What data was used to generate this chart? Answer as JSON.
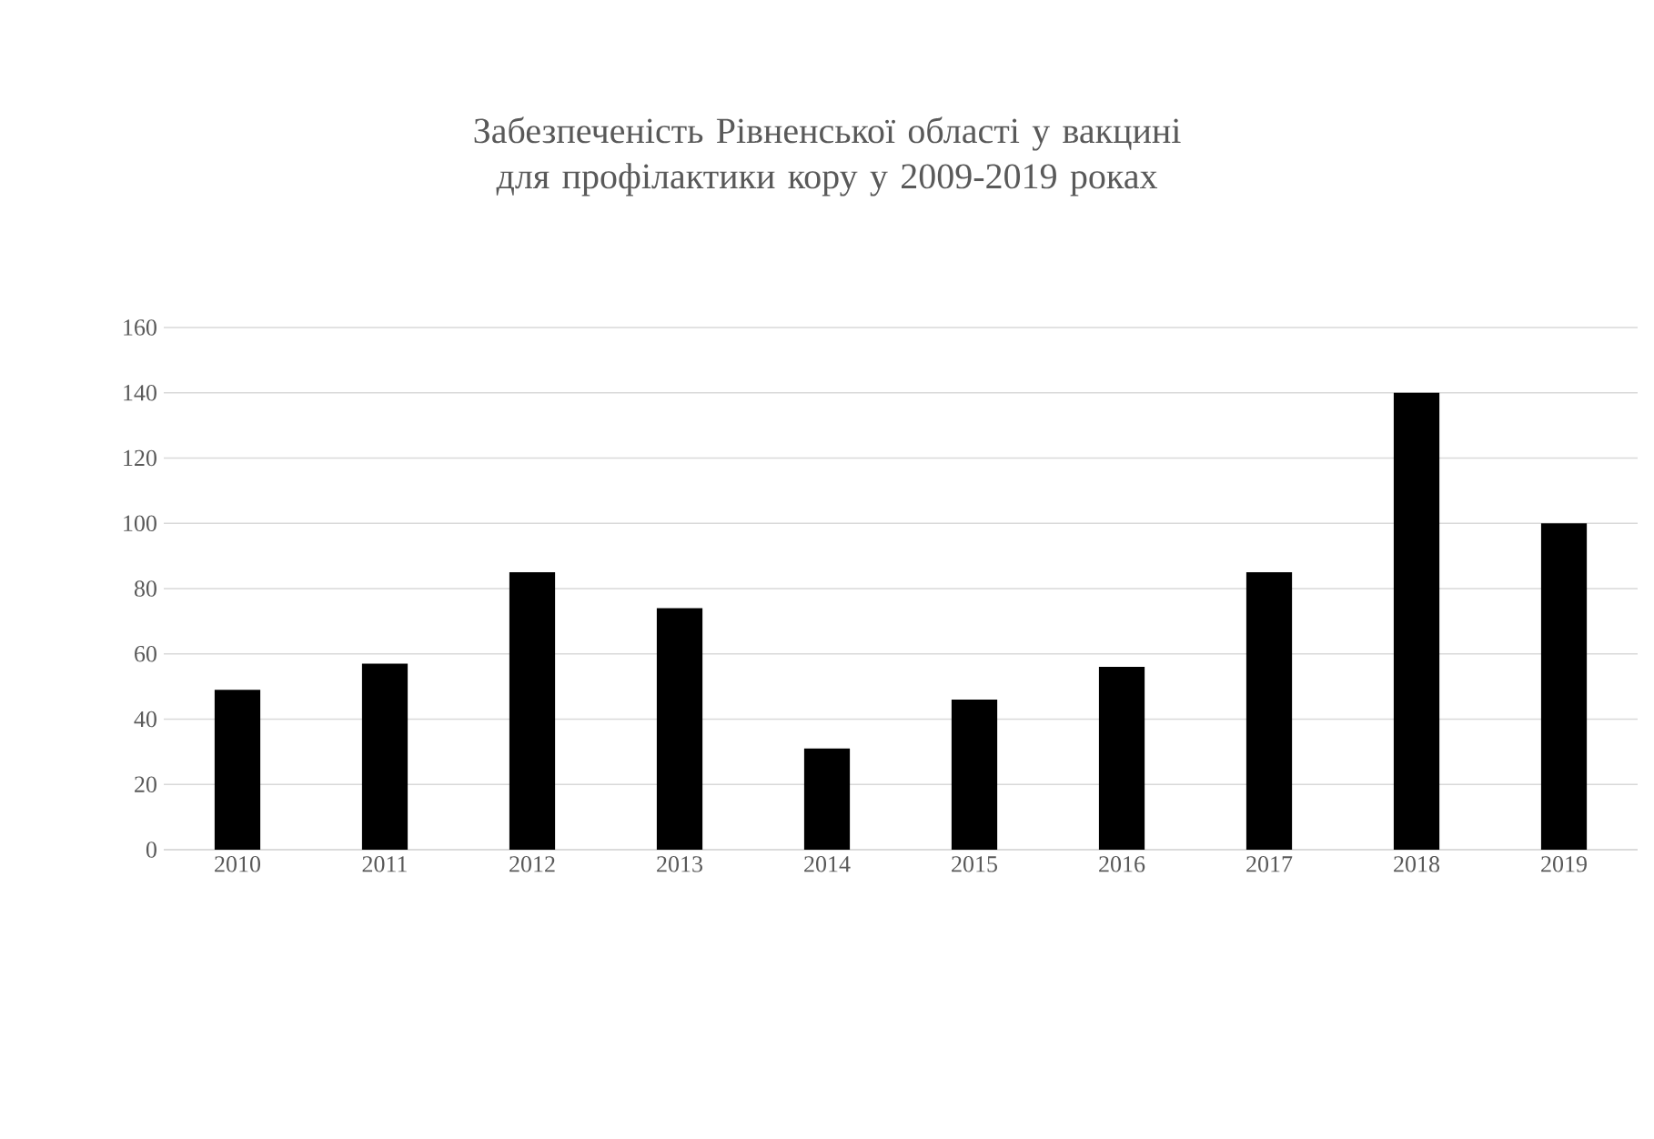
{
  "chart_data": {
    "type": "bar",
    "title": "Забезпеченість Рівненської області у вакцині для профілактики кору у 2009-2019 роках",
    "categories": [
      "2010",
      "2011",
      "2012",
      "2013",
      "2014",
      "2015",
      "2016",
      "2017",
      "2018",
      "2019"
    ],
    "values": [
      49,
      57,
      85,
      74,
      31,
      46,
      56,
      85,
      140,
      100
    ],
    "color": "#000000",
    "ylim": [
      0,
      160
    ],
    "yticks": [
      0,
      20,
      40,
      60,
      80,
      100,
      120,
      140,
      160
    ],
    "grid": "y"
  }
}
